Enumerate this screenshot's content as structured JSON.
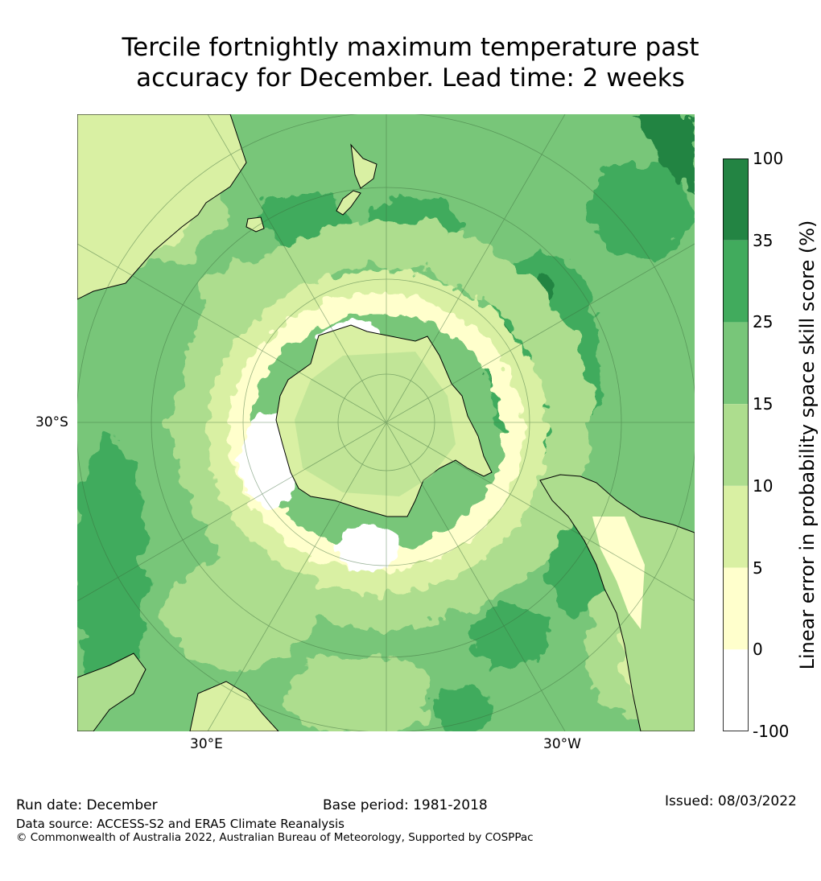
{
  "title": {
    "line1": "Tercile fortnightly maximum temperature past",
    "line2": "accuracy for December. Lead time: 2 weeks"
  },
  "map_labels": {
    "lat_label": "30°S",
    "lon_label_east": "30°E",
    "lon_label_west": "30°W"
  },
  "colorbar": {
    "title": "Linear error in probability space skill score (%)",
    "ticks": [
      "100",
      "35",
      "25",
      "15",
      "10",
      "5",
      "0",
      "-100"
    ],
    "bands": [
      {
        "from": "35",
        "to": "100",
        "color": "#238443"
      },
      {
        "from": "25",
        "to": "35",
        "color": "#41ab5d"
      },
      {
        "from": "15",
        "to": "25",
        "color": "#78c679"
      },
      {
        "from": "10",
        "to": "15",
        "color": "#addd8e"
      },
      {
        "from": "5",
        "to": "10",
        "color": "#d9f0a3"
      },
      {
        "from": "0",
        "to": "5",
        "color": "#ffffcc"
      },
      {
        "from": "-100",
        "to": "0",
        "color": "#ffffff"
      }
    ]
  },
  "footer": {
    "run_date": "Run date: December",
    "base_period": "Base period: 1981-2018",
    "issued": "Issued: 08/03/2022",
    "data_source": "Data source: ACCESS-S2 and ERA5 Climate Reanalysis",
    "copyright": "© Commonwealth of Australia 2022, Australian Bureau of Meteorology, Supported by COSPPac"
  }
}
